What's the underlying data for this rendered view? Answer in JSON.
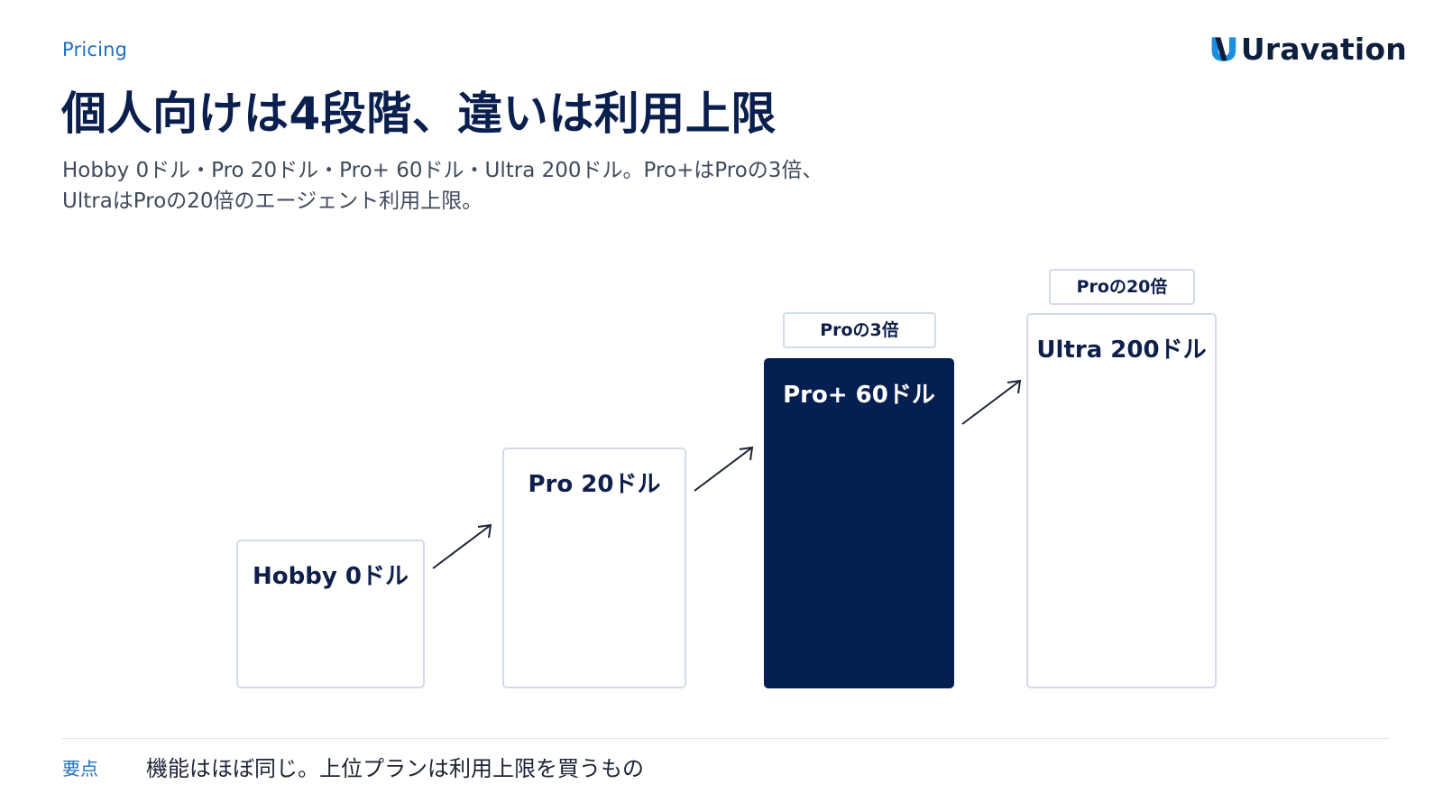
{
  "header": {
    "eyebrow": "Pricing",
    "title": "個人向けは4段階、違いは利用上限",
    "subtitle_line1": "Hobby 0ドル・Pro 20ドル・Pro+ 60ドル・Ultra 200ドル。Pro+はProの3倍、",
    "subtitle_line2": "UltraはProの20倍のエージェント利用上限。"
  },
  "logo": {
    "text": "Uravation",
    "icon": "uravation-logo-icon"
  },
  "plans": [
    {
      "label": "Hobby 0ドル",
      "tag": ""
    },
    {
      "label": "Pro 20ドル",
      "tag": ""
    },
    {
      "label": "Pro+ 60ドル",
      "tag": "Proの3倍",
      "highlighted": true
    },
    {
      "label": "Ultra 200ドル",
      "tag": "Proの20倍"
    }
  ],
  "footer": {
    "label": "要点",
    "text": "機能はほぼ同じ。上位プランは利用上限を買うもの"
  },
  "colors": {
    "accent": "#1f6fc0",
    "navy": "#061f52",
    "card_border": "#d3dbe9"
  }
}
